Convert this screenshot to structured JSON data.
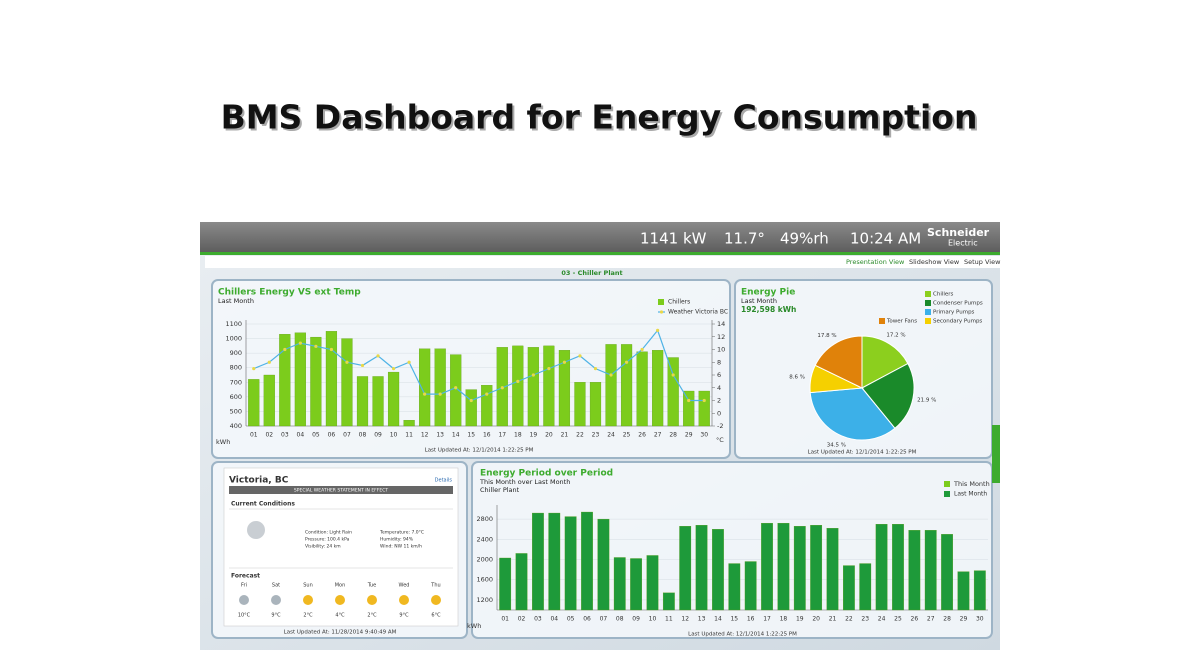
{
  "header": {
    "title": "BMS Dashboard for Energy Consumption"
  },
  "topbar": {
    "power": "1141 kW",
    "temperature": "11.7°",
    "humidity": "49%rh",
    "time": "10:24 AM",
    "brand": "Schneider",
    "brand_sub": "Electric"
  },
  "tabs": [
    "Presentation View",
    "Slideshow View",
    "Setup View"
  ],
  "page_heading": "03 - Chiller Plant",
  "chart_data": [
    {
      "type": "bar",
      "title": "Chillers Energy  VS ext Temp",
      "subtitle": "Last Month",
      "y_label": "kWh",
      "y2_label": "°C",
      "categories": [
        "01",
        "02",
        "03",
        "04",
        "05",
        "06",
        "07",
        "08",
        "09",
        "10",
        "11",
        "12",
        "13",
        "14",
        "15",
        "16",
        "17",
        "18",
        "19",
        "20",
        "21",
        "22",
        "23",
        "24",
        "25",
        "26",
        "27",
        "28",
        "29",
        "30"
      ],
      "series": [
        {
          "name": "Chillers",
          "color": "#7ccc1c",
          "values": [
            720,
            750,
            1030,
            1040,
            1010,
            1050,
            1000,
            740,
            740,
            770,
            440,
            930,
            930,
            890,
            650,
            680,
            940,
            950,
            940,
            950,
            920,
            700,
            700,
            960,
            960,
            910,
            920,
            870,
            640,
            640
          ]
        },
        {
          "name": "Weather Victoria BC",
          "color": "#4fb3e6",
          "type": "line",
          "axis": "y2",
          "values": [
            7,
            8,
            10,
            11,
            10.5,
            10,
            8,
            7.5,
            9,
            7,
            8,
            3,
            3,
            4,
            2,
            3,
            4,
            5,
            6,
            7,
            8,
            9,
            7,
            6,
            8,
            10,
            13,
            6,
            2,
            2
          ]
        }
      ],
      "ylim": [
        400,
        1100
      ],
      "yticks": [
        400,
        500,
        600,
        700,
        800,
        900,
        1000,
        1100
      ],
      "y2lim": [
        -2,
        14
      ],
      "y2ticks": [
        -2,
        0,
        2,
        4,
        6,
        8,
        10,
        12,
        14
      ],
      "footer": "Last Updated At: 12/1/2014 1:22:25 PM"
    },
    {
      "type": "pie",
      "title": "Energy Pie",
      "subtitle": "Last Month",
      "total": "192,598 kWh",
      "categories": [
        "Chillers",
        "Condenser Pumps",
        "Primary Pumps",
        "Secondary Pumps",
        "Tower Fans"
      ],
      "values": [
        17.2,
        21.9,
        34.5,
        8.6,
        17.8
      ],
      "value_labels": [
        "17.2 %",
        "21.9 %",
        "34.5 %",
        "8.6 %",
        "17.8 %"
      ],
      "colors": [
        "#8ccf1e",
        "#1a8a2a",
        "#3cb0e8",
        "#f5d000",
        "#e0820a"
      ],
      "footer": "Last Updated At: 12/1/2014 1:22:25 PM"
    },
    {
      "type": "bar",
      "title": "Energy Period over Period",
      "subtitle": "This Month over Last Month",
      "subtitle2": "Chiller Plant",
      "y_label": "kWh",
      "categories": [
        "01",
        "02",
        "03",
        "04",
        "05",
        "06",
        "07",
        "08",
        "09",
        "10",
        "11",
        "12",
        "13",
        "14",
        "15",
        "16",
        "17",
        "18",
        "19",
        "20",
        "21",
        "22",
        "23",
        "24",
        "25",
        "26",
        "27",
        "28",
        "29",
        "30"
      ],
      "legend_only": [
        {
          "name": "This Month",
          "color": "#7ccc1c"
        }
      ],
      "series": [
        {
          "name": "Last Month",
          "color": "#1e9a3a",
          "values": [
            2030,
            2120,
            2920,
            2920,
            2850,
            2940,
            2800,
            2040,
            2020,
            2080,
            1340,
            2660,
            2680,
            2600,
            1920,
            1960,
            2720,
            2720,
            2660,
            2680,
            2620,
            1880,
            1920,
            2700,
            2700,
            2580,
            2580,
            2500,
            1760,
            1780
          ]
        }
      ],
      "ylim": [
        1000,
        3000
      ],
      "yticks": [
        1200,
        1600,
        2000,
        2400,
        2800
      ],
      "footer": "Last Updated At: 12/1/2014 1:22:25 PM"
    }
  ],
  "weather": {
    "city": "Victoria, BC",
    "details": "Details",
    "alert": "SPECIAL WEATHER STATEMENT IN EFFECT",
    "current_title": "Current Conditions",
    "conditions": [
      "Condition: Light Rain",
      "Temperature: 7.0°C",
      "Pressure: 100.4 kPa",
      "Humidity: 94%",
      "Visibility: 24 km",
      "Wind: NW 11 km/h"
    ],
    "forecast_title": "Forecast",
    "forecast": [
      {
        "day": "Fri",
        "high": "10°C"
      },
      {
        "day": "Sat",
        "high": "9°C"
      },
      {
        "day": "Sun",
        "high": "2°C"
      },
      {
        "day": "Mon",
        "high": "4°C"
      },
      {
        "day": "Tue",
        "high": "2°C"
      },
      {
        "day": "Wed",
        "high": "9°C"
      },
      {
        "day": "Thu",
        "high": "6°C"
      }
    ],
    "footer": "Last Updated At: 11/28/2014 9:40:49 AM"
  }
}
